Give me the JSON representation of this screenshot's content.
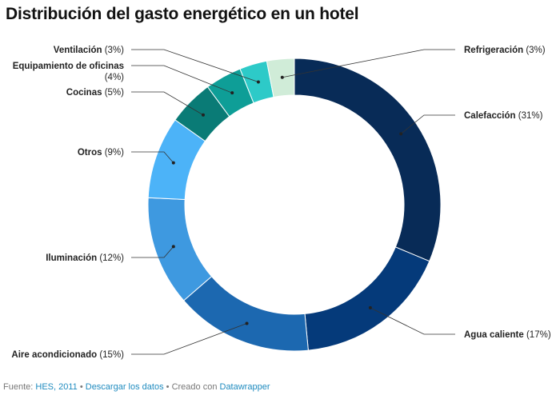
{
  "title": "Distribución del gasto energético en un hotel",
  "footer": {
    "source_prefix": "Fuente:",
    "source_link": "HES, 2011",
    "sep1": "•",
    "download_link": "Descargar los datos",
    "sep2": "•",
    "created_text": "Creado con",
    "created_link": "Datawrapper"
  },
  "chart_data": {
    "type": "pie",
    "title": "Distribución del gasto energético en un hotel",
    "donut": true,
    "unit": "%",
    "slices": [
      {
        "label": "Calefacción",
        "value": 31,
        "color": "#082b57"
      },
      {
        "label": "Agua caliente",
        "value": 17,
        "color": "#053a7a"
      },
      {
        "label": "Aire acondicionado",
        "value": 15,
        "color": "#1c68b0"
      },
      {
        "label": "Iluminación",
        "value": 12,
        "color": "#3e99e0"
      },
      {
        "label": "Otros",
        "value": 9,
        "color": "#4cb3f8"
      },
      {
        "label": "Cocinas",
        "value": 5,
        "color": "#0a7b76"
      },
      {
        "label": "Equipamiento de oficinas",
        "value": 4,
        "color": "#0e9e97"
      },
      {
        "label": "Ventilación",
        "value": 3,
        "color": "#2dcac8"
      },
      {
        "label": "Refrigeración",
        "value": 3,
        "color": "#d0ecd8"
      }
    ]
  }
}
